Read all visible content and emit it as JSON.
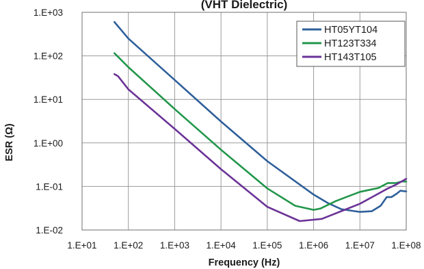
{
  "chart_data": {
    "type": "line",
    "title": "(VHT Dielectric)",
    "xlabel": "Frequency (Hz)",
    "ylabel": "ESR (Ω)",
    "xscale": "log",
    "yscale": "log",
    "xlim": [
      10,
      100000000
    ],
    "ylim": [
      0.01,
      1000
    ],
    "x_ticks": [
      "1.E+01",
      "1.E+02",
      "1.E+03",
      "1.E+04",
      "1.E+05",
      "1.E+06",
      "1.E+07",
      "1.E+08"
    ],
    "y_ticks": [
      "1.E-02",
      "1.E-01",
      "1.E+00",
      "1.E+01",
      "1.E+02",
      "1.E+03"
    ],
    "grid": true,
    "legend_position": "top-right",
    "series": [
      {
        "name": "HT05YT104",
        "color": "#2e5f9a",
        "points": [
          [
            50,
            600
          ],
          [
            100,
            250
          ],
          [
            1000,
            28
          ],
          [
            10000,
            3.1
          ],
          [
            100000,
            0.38
          ],
          [
            1000000,
            0.065
          ],
          [
            2000000,
            0.042
          ],
          [
            4000000,
            0.03
          ],
          [
            10000000,
            0.026
          ],
          [
            18000000,
            0.027
          ],
          [
            28000000,
            0.036
          ],
          [
            38000000,
            0.057
          ],
          [
            48000000,
            0.057
          ],
          [
            62000000,
            0.068
          ],
          [
            75000000,
            0.08
          ],
          [
            90000000,
            0.078
          ],
          [
            100000000,
            0.077
          ]
        ]
      },
      {
        "name": "HT123T334",
        "color": "#22964a",
        "points": [
          [
            50,
            115
          ],
          [
            100,
            55
          ],
          [
            1000,
            6.0
          ],
          [
            10000,
            0.7
          ],
          [
            100000,
            0.09
          ],
          [
            400000,
            0.036
          ],
          [
            1000000,
            0.029
          ],
          [
            1400000,
            0.031
          ],
          [
            3000000,
            0.046
          ],
          [
            10000000,
            0.075
          ],
          [
            25000000,
            0.092
          ],
          [
            40000000,
            0.12
          ],
          [
            60000000,
            0.12
          ],
          [
            80000000,
            0.13
          ],
          [
            100000000,
            0.13
          ]
        ]
      },
      {
        "name": "HT143T105",
        "color": "#6b3297",
        "points": [
          [
            50,
            38
          ],
          [
            60,
            34
          ],
          [
            100,
            17
          ],
          [
            1000,
            2.1
          ],
          [
            10000,
            0.25
          ],
          [
            100000,
            0.034
          ],
          [
            500000,
            0.016
          ],
          [
            1500000,
            0.018
          ],
          [
            10000000,
            0.04
          ],
          [
            20000000,
            0.06
          ],
          [
            40000000,
            0.09
          ],
          [
            60000000,
            0.11
          ],
          [
            100000000,
            0.15
          ]
        ]
      }
    ]
  }
}
